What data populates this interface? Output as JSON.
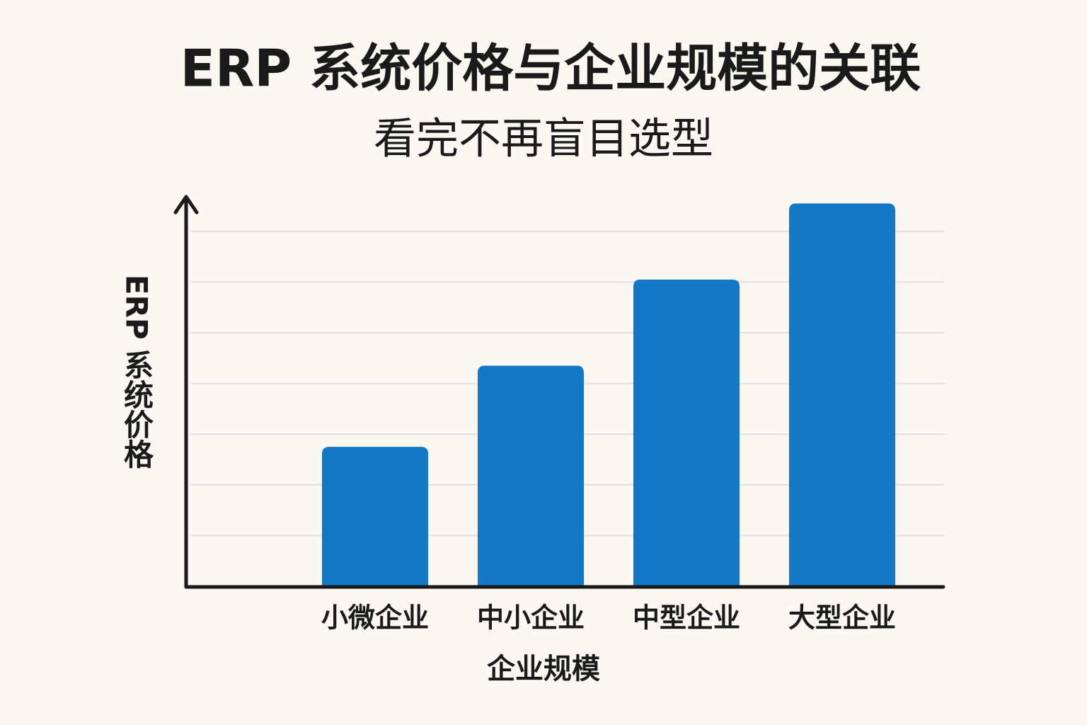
{
  "chart_data": {
    "type": "bar",
    "title": "ERP 系统价格与企业规模的关联",
    "subtitle": "看完不再盲目选型",
    "x_label": "企业规模",
    "y_label": "ERP 系统价格",
    "categories": [
      "小微企业",
      "中小企业",
      "中型企业",
      "大型企业"
    ],
    "values": [
      2.75,
      4.35,
      6.05,
      7.55
    ],
    "color": "#1577c8",
    "ylim": [
      0,
      7.7
    ],
    "yticks": [
      1,
      2,
      3,
      4,
      5,
      6,
      7
    ],
    "grid": true
  }
}
